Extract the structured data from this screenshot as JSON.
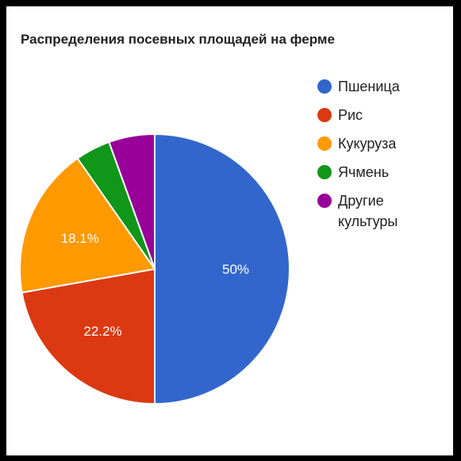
{
  "chart_data": {
    "type": "pie",
    "title": "Распределения посевных площадей на ферме",
    "categories": [
      "Пшеница",
      "Рис",
      "Кукуруза",
      "Ячмень",
      "Другие культуры"
    ],
    "values": [
      50,
      22.2,
      18.1,
      4.2,
      5.5
    ],
    "data_labels": [
      "50%",
      "22.2%",
      "18.1%",
      "",
      ""
    ],
    "colors": [
      "#3366cc",
      "#dc3912",
      "#ff9900",
      "#109618",
      "#990099"
    ],
    "legend_position": "right"
  }
}
